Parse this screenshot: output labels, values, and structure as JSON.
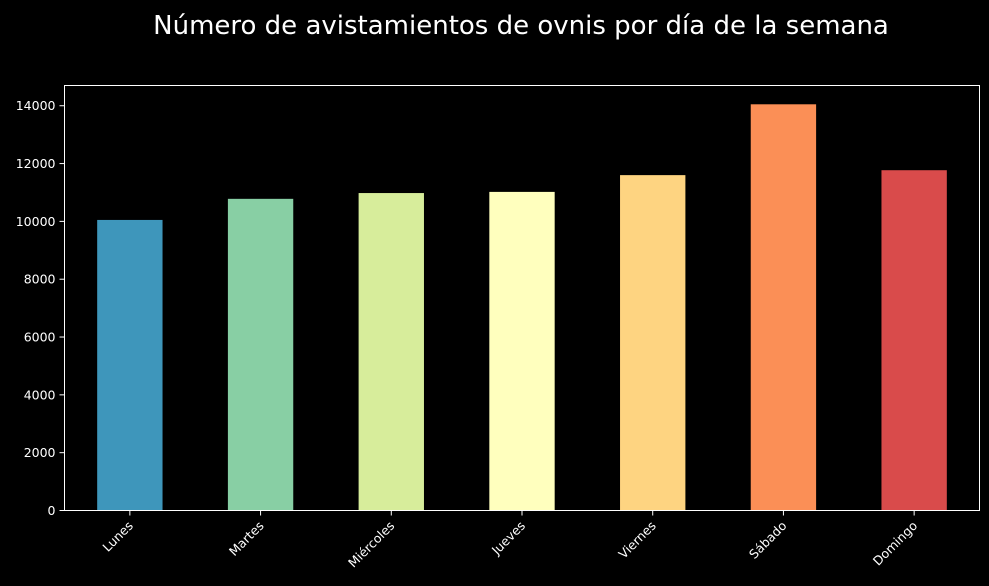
{
  "chart_data": {
    "type": "bar",
    "title": "Número de avistamientos de ovnis por día de la semana",
    "xlabel": "",
    "ylabel": "",
    "categories": [
      "Lunes",
      "Martes",
      "Miércoles",
      "Jueves",
      "Viernes",
      "Sábado",
      "Domingo"
    ],
    "values": [
      10050,
      10780,
      10980,
      11020,
      11600,
      14050,
      11770
    ],
    "colors": [
      "#3e96bb",
      "#88cfa4",
      "#d7ed9b",
      "#ffffbe",
      "#fed481",
      "#fb8f56",
      "#d94b4b"
    ],
    "ylim": [
      0,
      14700
    ],
    "yticks": [
      0,
      2000,
      4000,
      6000,
      8000,
      10000,
      12000,
      14000
    ],
    "grid": false,
    "legend": "none",
    "background": "#000000",
    "text_color": "#ffffff"
  }
}
